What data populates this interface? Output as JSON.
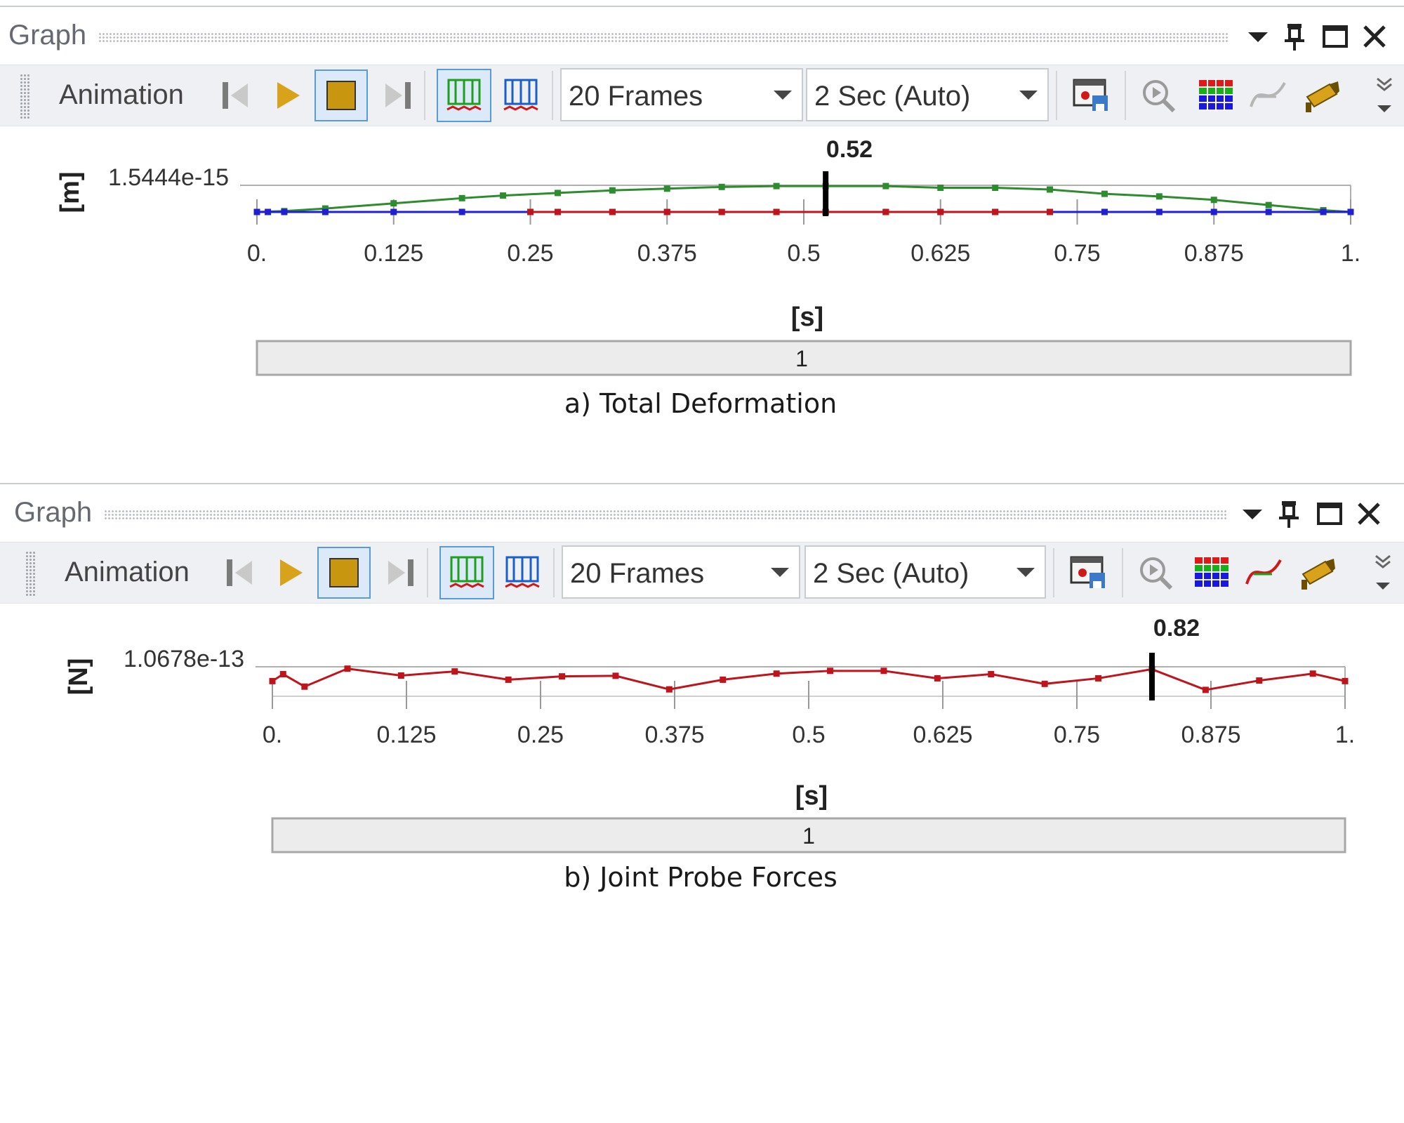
{
  "panels": [
    {
      "window_title": "Graph",
      "toolbar": {
        "label": "Animation",
        "frames_value": "20 Frames",
        "duration_value": "2 Sec (Auto)"
      },
      "caption": "a) Total Deformation",
      "chart_data": {
        "type": "line",
        "ylabel": "[m]",
        "xlabel": "[s]",
        "y_tick_label": "1.5444e-15",
        "x_tick_labels": [
          "0.",
          "0.125",
          "0.25",
          "0.375",
          "0.5",
          "0.625",
          "0.75",
          "0.875",
          "1."
        ],
        "xlim": [
          0,
          1
        ],
        "ylim": [
          0,
          1.5444e-15
        ],
        "cursor_value": "0.52",
        "cursor_x": 0.52,
        "range_bar_label": "1",
        "series": [
          {
            "color": "#2e8b2e",
            "x": [
              0,
              0.025,
              0.0625,
              0.125,
              0.1875,
              0.225,
              0.275,
              0.325,
              0.375,
              0.425,
              0.475,
              0.52,
              0.575,
              0.625,
              0.675,
              0.725,
              0.775,
              0.825,
              0.875,
              0.925,
              0.975,
              1.0
            ],
            "y": [
              0,
              5e-17,
              2e-16,
              5e-16,
              8e-16,
              9.5e-16,
              1.1e-15,
              1.25e-15,
              1.35e-15,
              1.45e-15,
              1.5e-15,
              1.5e-15,
              1.5e-15,
              1.4e-15,
              1.4e-15,
              1.3e-15,
              1.05e-15,
              9e-16,
              7e-16,
              4e-16,
              1e-16,
              0
            ]
          },
          {
            "color": "#2020d0",
            "x": [
              0,
              0.01,
              0.025,
              0.0625,
              0.125,
              0.1875,
              0.25,
              0.325,
              0.375,
              0.425,
              0.475,
              0.52,
              0.575,
              0.625,
              0.675,
              0.725,
              0.775,
              0.825,
              0.875,
              0.925,
              0.975,
              1.0
            ],
            "y": [
              0,
              0,
              0,
              0,
              0,
              0,
              0,
              0,
              0,
              0,
              0,
              0,
              0,
              0,
              0,
              0,
              0,
              0,
              0,
              0,
              0,
              0
            ]
          },
          {
            "color": "#c0141c",
            "x": [
              0.25,
              0.275,
              0.325,
              0.375,
              0.425,
              0.475,
              0.52,
              0.575,
              0.625,
              0.675,
              0.725
            ],
            "y": [
              0,
              0,
              0,
              0,
              0,
              0,
              0,
              0,
              0,
              0,
              0
            ]
          }
        ]
      }
    },
    {
      "window_title": "Graph",
      "toolbar": {
        "label": "Animation",
        "frames_value": "20 Frames",
        "duration_value": "2 Sec (Auto)"
      },
      "caption": "b) Joint Probe Forces",
      "chart_data": {
        "type": "line",
        "ylabel": "[N]",
        "xlabel": "[s]",
        "y_tick_label": "1.0678e-13",
        "x_tick_labels": [
          "0.",
          "0.125",
          "0.25",
          "0.375",
          "0.5",
          "0.625",
          "0.75",
          "0.875",
          "1."
        ],
        "xlim": [
          0,
          1
        ],
        "ylim": [
          0,
          1.0678e-13
        ],
        "cursor_value": "0.82",
        "cursor_x": 0.82,
        "range_bar_label": "1",
        "series": [
          {
            "color": "#c0141c",
            "x": [
              0,
              0.01,
              0.03,
              0.07,
              0.12,
              0.17,
              0.22,
              0.27,
              0.32,
              0.37,
              0.42,
              0.47,
              0.52,
              0.57,
              0.62,
              0.67,
              0.72,
              0.77,
              0.82,
              0.87,
              0.92,
              0.97,
              1.0
            ],
            "y": [
              5.5e-14,
              8e-14,
              3.5e-14,
              1e-13,
              7.5e-14,
              9e-14,
              6e-14,
              7.2e-14,
              7.4e-14,
              2.5e-14,
              6e-14,
              8.2e-14,
              9.2e-14,
              9.2e-14,
              6.5e-14,
              8e-14,
              4.5e-14,
              6.5e-14,
              9.8e-14,
              2.3e-14,
              5.7e-14,
              8.2e-14,
              5.5e-14
            ]
          }
        ]
      }
    }
  ]
}
